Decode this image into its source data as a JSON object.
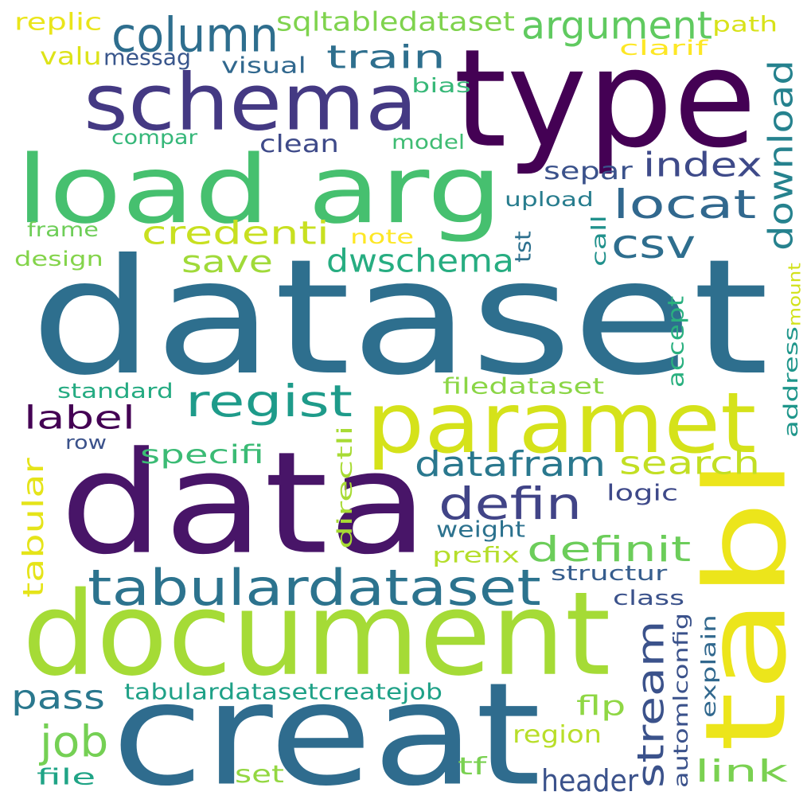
{
  "words": [
    {
      "text": "dataset",
      "color": "#2e6f8e",
      "rotated": false
    },
    {
      "text": "data",
      "color": "#481568",
      "rotated": false
    },
    {
      "text": "creat",
      "color": "#2f6c8e",
      "rotated": false
    },
    {
      "text": "document",
      "color": "#a5db36",
      "rotated": false
    },
    {
      "text": "type",
      "color": "#440154",
      "rotated": false
    },
    {
      "text": "tabl",
      "color": "#ece51b",
      "rotated": true
    },
    {
      "text": "load arg",
      "color": "#46c06f",
      "rotated": false
    },
    {
      "text": "schema",
      "color": "#443983",
      "rotated": false
    },
    {
      "text": "paramet",
      "color": "#d5e21a",
      "rotated": false
    },
    {
      "text": "tabulardataset",
      "color": "#2c738e",
      "rotated": false
    },
    {
      "text": "column",
      "color": "#2e6e8e",
      "rotated": false
    },
    {
      "text": "argument",
      "color": "#60ca60",
      "rotated": false
    },
    {
      "text": "train",
      "color": "#2e6f8e",
      "rotated": false
    },
    {
      "text": "locat",
      "color": "#31688e",
      "rotated": false
    },
    {
      "text": "csv",
      "color": "#2e6e8e",
      "rotated": false
    },
    {
      "text": "index",
      "color": "#3e4a89",
      "rotated": false
    },
    {
      "text": "credenti",
      "color": "#c8e020",
      "rotated": false
    },
    {
      "text": "save",
      "color": "#a0da39",
      "rotated": false
    },
    {
      "text": "dwschema",
      "color": "#27ad81",
      "rotated": false
    },
    {
      "text": "regist",
      "color": "#1e9b8a",
      "rotated": false
    },
    {
      "text": "datafram",
      "color": "#2a788e",
      "rotated": false
    },
    {
      "text": "search",
      "color": "#c2df23",
      "rotated": false
    },
    {
      "text": "defin",
      "color": "#414487",
      "rotated": false
    },
    {
      "text": "definit",
      "color": "#6ccd5a",
      "rotated": false
    },
    {
      "text": "label",
      "color": "#440154",
      "rotated": false
    },
    {
      "text": "stream",
      "color": "#3b528b",
      "rotated": true
    },
    {
      "text": "download",
      "color": "#26828e",
      "rotated": true
    },
    {
      "text": "tabular",
      "color": "#e5e419",
      "rotated": true
    },
    {
      "text": "pass",
      "color": "#2a788e",
      "rotated": false
    },
    {
      "text": "job",
      "color": "#75d054",
      "rotated": false
    },
    {
      "text": "link",
      "color": "#7ad151",
      "rotated": false
    },
    {
      "text": "separ",
      "color": "#3b528b",
      "rotated": false
    },
    {
      "text": "specifi",
      "color": "#3bbb75",
      "rotated": false
    },
    {
      "text": "tabulardatasetcreatejob",
      "color": "#1fa187",
      "rotated": false
    },
    {
      "text": "sqltabledataset",
      "color": "#7fd34e",
      "rotated": false
    },
    {
      "text": "replic",
      "color": "#eae51a",
      "rotated": false
    },
    {
      "text": "path",
      "color": "#d8e219",
      "rotated": false
    },
    {
      "text": "valu",
      "color": "#dde318",
      "rotated": false
    },
    {
      "text": "messag",
      "color": "#39568c",
      "rotated": false
    },
    {
      "text": "visual",
      "color": "#31688e",
      "rotated": false
    },
    {
      "text": "clarif",
      "color": "#fde725",
      "rotated": false
    },
    {
      "text": "bias",
      "color": "#37b878",
      "rotated": false
    },
    {
      "text": "compar",
      "color": "#35b779",
      "rotated": false
    },
    {
      "text": "clean",
      "color": "#3e4a89",
      "rotated": false
    },
    {
      "text": "model",
      "color": "#3fbc73",
      "rotated": false
    },
    {
      "text": "upload",
      "color": "#287d8e",
      "rotated": false
    },
    {
      "text": "frame",
      "color": "#6ece58",
      "rotated": false
    },
    {
      "text": "note",
      "color": "#fde725",
      "rotated": false
    },
    {
      "text": "design",
      "color": "#84d44b",
      "rotated": false
    },
    {
      "text": "tst",
      "color": "#2d708e",
      "rotated": true
    },
    {
      "text": "call",
      "color": "#21918c",
      "rotated": true
    },
    {
      "text": "accept",
      "color": "#2ab07f",
      "rotated": true
    },
    {
      "text": "mount",
      "color": "#d2e21b",
      "rotated": true
    },
    {
      "text": "address",
      "color": "#1f968b",
      "rotated": true
    },
    {
      "text": "standard",
      "color": "#25ab82",
      "rotated": false
    },
    {
      "text": "filedataset",
      "color": "#8bd646",
      "rotated": false
    },
    {
      "text": "directli",
      "color": "#a8db34",
      "rotated": true
    },
    {
      "text": "row",
      "color": "#3b528b",
      "rotated": false
    },
    {
      "text": "logic",
      "color": "#3e4989",
      "rotated": false
    },
    {
      "text": "weight",
      "color": "#2c728e",
      "rotated": false
    },
    {
      "text": "prefix",
      "color": "#b5de2b",
      "rotated": false
    },
    {
      "text": "structur",
      "color": "#365d8d",
      "rotated": false
    },
    {
      "text": "class",
      "color": "#3b528b",
      "rotated": false
    },
    {
      "text": "automlconfig",
      "color": "#3b528b",
      "rotated": true
    },
    {
      "text": "explain",
      "color": "#31688e",
      "rotated": true
    },
    {
      "text": "flp",
      "color": "#8fd744",
      "rotated": false
    },
    {
      "text": "region",
      "color": "#b8de29",
      "rotated": false
    },
    {
      "text": "file",
      "color": "#20a486",
      "rotated": false
    },
    {
      "text": "set",
      "color": "#93d741",
      "rotated": false
    },
    {
      "text": "tf",
      "color": "#7ad151",
      "rotated": false
    },
    {
      "text": "header",
      "color": "#3b528b",
      "rotated": false
    }
  ]
}
